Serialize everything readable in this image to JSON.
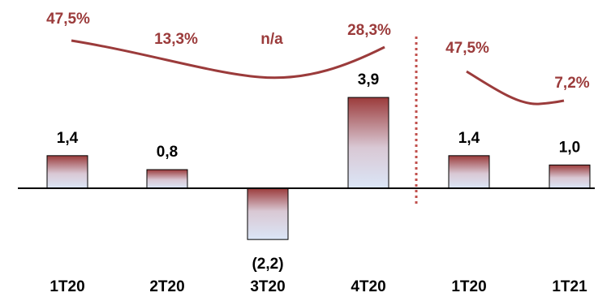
{
  "chart_data": {
    "type": "bar",
    "categories": [
      "1T20",
      "2T20",
      "3T20",
      "4T20",
      "1T20",
      "1T21"
    ],
    "values": [
      1.4,
      0.8,
      -2.2,
      3.9,
      1.4,
      1.0
    ],
    "value_labels": [
      "1,4",
      "0,8",
      "(2,2)",
      "3,9",
      "1,4",
      "1,0"
    ],
    "margin_line": {
      "type": "line",
      "groups": [
        {
          "labels": [
            "47,5%",
            "13,3%",
            "n/a",
            "28,3%"
          ]
        },
        {
          "labels": [
            "47,5%",
            "7,2%"
          ]
        }
      ]
    },
    "separator": "dotted vertical line between 4T20 and 1T20",
    "axis": {
      "baseline": 0,
      "grid": false,
      "legend": "none"
    },
    "colors": {
      "bar_top": "#9b3b3b",
      "bar_bottom": "#dbe6f7",
      "line": "#9b3b3b",
      "separator": "#c0504d",
      "axis": "#000000",
      "text": "#000000"
    }
  }
}
